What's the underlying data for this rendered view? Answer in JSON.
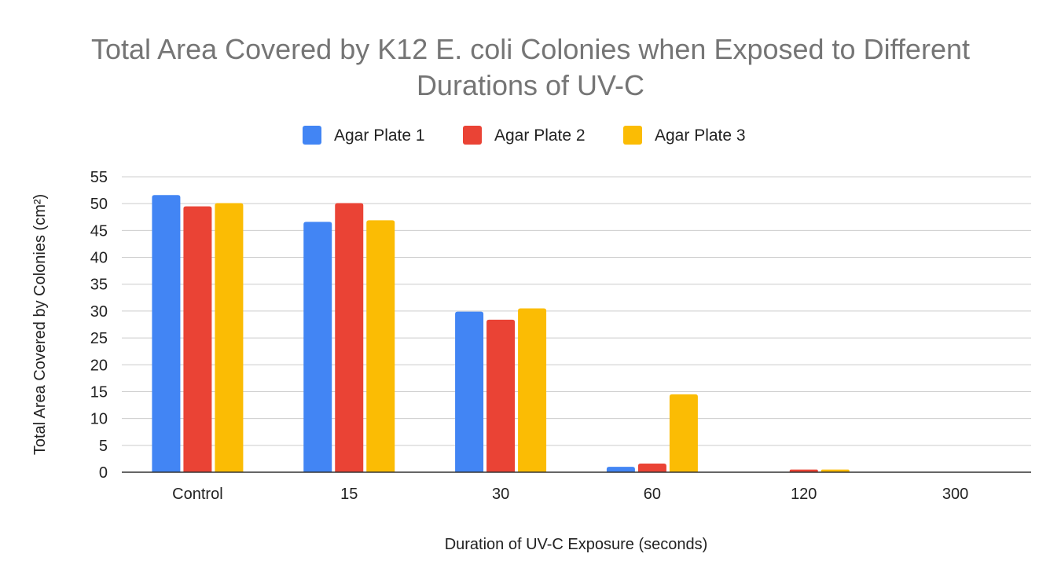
{
  "chart_data": {
    "type": "bar",
    "title": "Total Area Covered by K12 E. coli Colonies when Exposed to Different Durations of UV-C",
    "title_lines": [
      "Total Area Covered by K12 E. coli Colonies when Exposed to Different",
      "Durations of UV-C"
    ],
    "xlabel": "Duration of UV-C Exposure (seconds)",
    "ylabel": "Total Area Covered by Colonies (cm²)",
    "categories": [
      "Control",
      "15",
      "30",
      "60",
      "120",
      "300"
    ],
    "series": [
      {
        "name": "Agar Plate 1",
        "color": "#4285f4",
        "values": [
          51.6,
          46.6,
          29.9,
          1.0,
          0.0,
          0.0
        ]
      },
      {
        "name": "Agar Plate 2",
        "color": "#ea4335",
        "values": [
          49.5,
          50.1,
          28.4,
          1.6,
          0.5,
          0.0
        ]
      },
      {
        "name": "Agar Plate 3",
        "color": "#fbbc04",
        "values": [
          50.1,
          46.9,
          30.5,
          14.5,
          0.5,
          0.0
        ]
      }
    ],
    "ylim": [
      0,
      55
    ],
    "yticks": [
      0,
      5,
      10,
      15,
      20,
      25,
      30,
      35,
      40,
      45,
      50,
      55
    ],
    "grid": true,
    "legend_position": "top"
  }
}
